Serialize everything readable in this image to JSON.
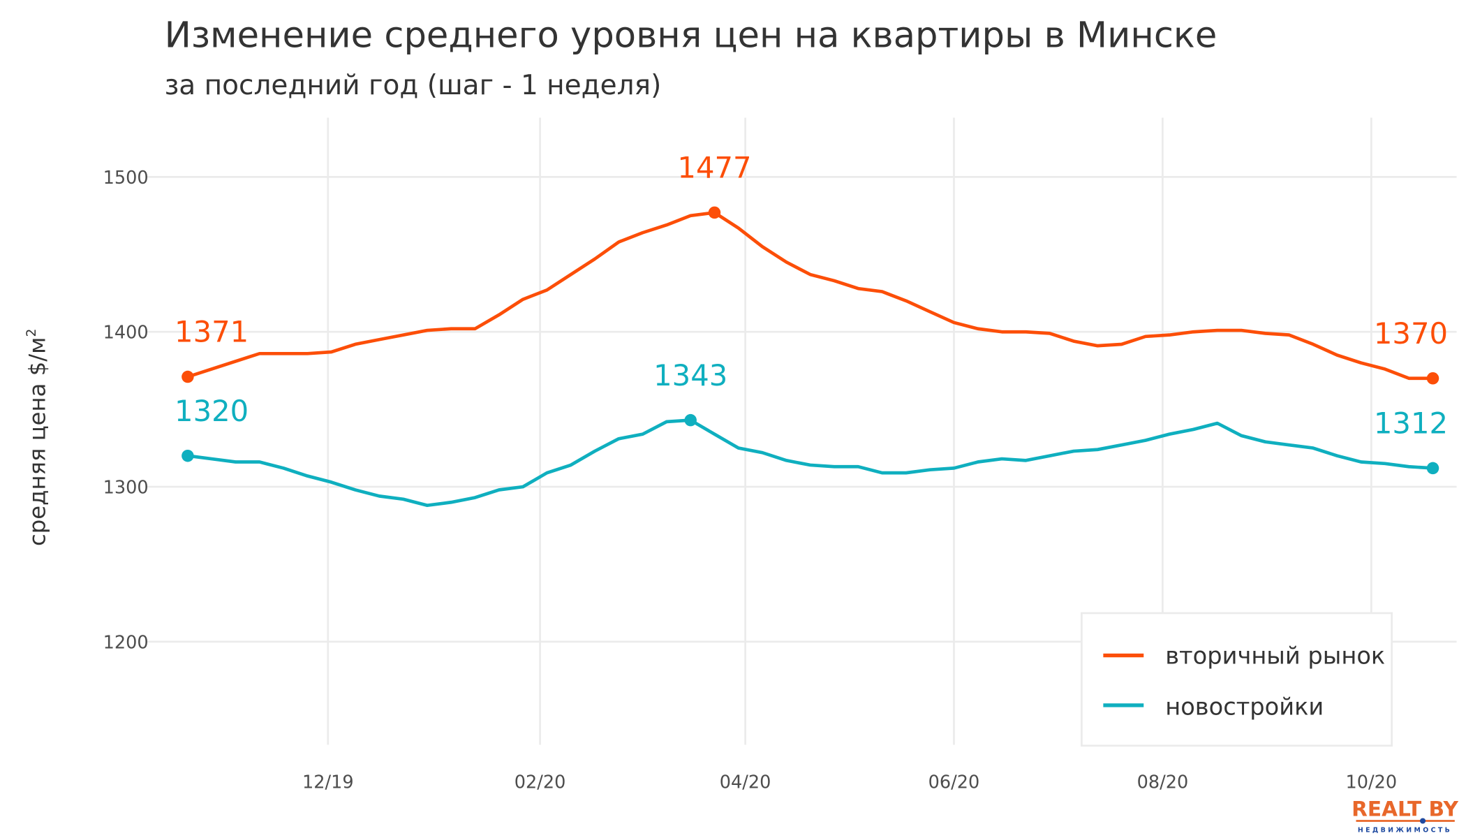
{
  "title": "Изменение среднего уровня цен на квартиры в Минске",
  "subtitle": "за последний год (шаг - 1 неделя)",
  "logo": {
    "text": "REALT.BY",
    "tagline": "НЕДВИЖИМОСТЬ",
    "colors": {
      "brand": "#e8672a",
      "tagline": "#1f4aa0"
    }
  },
  "chart_data": {
    "type": "line",
    "title": "Изменение среднего уровня цен на квартиры в Минске",
    "subtitle": "за последний год (шаг - 1 неделя)",
    "xlabel": "",
    "ylabel": "средняя цена $/м",
    "ylabel_sup": "2",
    "ylim": [
      1135,
      1538
    ],
    "grid": true,
    "legend_position": "bottom-right",
    "yticks": [
      1200,
      1300,
      1400,
      1500
    ],
    "xticks": [
      {
        "date": "2019-12-01",
        "label": "12/19"
      },
      {
        "date": "2020-02-01",
        "label": "02/20"
      },
      {
        "date": "2020-04-01",
        "label": "04/20"
      },
      {
        "date": "2020-06-01",
        "label": "06/20"
      },
      {
        "date": "2020-08-01",
        "label": "08/20"
      },
      {
        "date": "2020-10-01",
        "label": "10/20"
      }
    ],
    "x": [
      "2019-10-21",
      "2019-10-28",
      "2019-11-04",
      "2019-11-11",
      "2019-11-18",
      "2019-11-25",
      "2019-12-02",
      "2019-12-09",
      "2019-12-16",
      "2019-12-23",
      "2019-12-30",
      "2020-01-06",
      "2020-01-13",
      "2020-01-20",
      "2020-01-27",
      "2020-02-03",
      "2020-02-10",
      "2020-02-17",
      "2020-02-24",
      "2020-03-02",
      "2020-03-09",
      "2020-03-16",
      "2020-03-23",
      "2020-03-30",
      "2020-04-06",
      "2020-04-13",
      "2020-04-20",
      "2020-04-27",
      "2020-05-04",
      "2020-05-11",
      "2020-05-18",
      "2020-05-25",
      "2020-06-01",
      "2020-06-08",
      "2020-06-15",
      "2020-06-22",
      "2020-06-29",
      "2020-07-06",
      "2020-07-13",
      "2020-07-20",
      "2020-07-27",
      "2020-08-03",
      "2020-08-10",
      "2020-08-17",
      "2020-08-24",
      "2020-08-31",
      "2020-09-07",
      "2020-09-14",
      "2020-09-21",
      "2020-09-28",
      "2020-10-05",
      "2020-10-12",
      "2020-10-19"
    ],
    "series": [
      {
        "name": "вторичный рынок",
        "color": "#fc4e08",
        "values": [
          1371,
          1376,
          1381,
          1386,
          1386,
          1386,
          1387,
          1392,
          1395,
          1398,
          1401,
          1402,
          1402,
          1411,
          1421,
          1427,
          1437,
          1447,
          1458,
          1464,
          1469,
          1475,
          1477,
          1467,
          1455,
          1445,
          1437,
          1433,
          1428,
          1426,
          1420,
          1413,
          1406,
          1402,
          1400,
          1400,
          1399,
          1394,
          1391,
          1392,
          1397,
          1398,
          1400,
          1401,
          1401,
          1399,
          1398,
          1392,
          1385,
          1380,
          1376,
          1370,
          1370
        ],
        "annotations": [
          {
            "index": 0,
            "label": "1371",
            "anchor": "start"
          },
          {
            "index": 22,
            "label": "1477",
            "anchor": "middle"
          },
          {
            "index": 52,
            "label": "1370",
            "anchor": "end"
          }
        ]
      },
      {
        "name": "новостройки",
        "color": "#0fafbf",
        "values": [
          1320,
          1318,
          1316,
          1316,
          1312,
          1307,
          1303,
          1298,
          1294,
          1292,
          1288,
          1290,
          1293,
          1298,
          1300,
          1309,
          1314,
          1323,
          1331,
          1334,
          1342,
          1343,
          1334,
          1325,
          1322,
          1317,
          1314,
          1313,
          1313,
          1309,
          1309,
          1311,
          1312,
          1316,
          1318,
          1317,
          1320,
          1323,
          1324,
          1327,
          1330,
          1334,
          1337,
          1341,
          1333,
          1329,
          1327,
          1325,
          1320,
          1316,
          1315,
          1313,
          1312
        ],
        "annotations": [
          {
            "index": 0,
            "label": "1320",
            "anchor": "start"
          },
          {
            "index": 21,
            "label": "1343",
            "anchor": "middle"
          },
          {
            "index": 52,
            "label": "1312",
            "anchor": "end"
          }
        ]
      }
    ]
  }
}
